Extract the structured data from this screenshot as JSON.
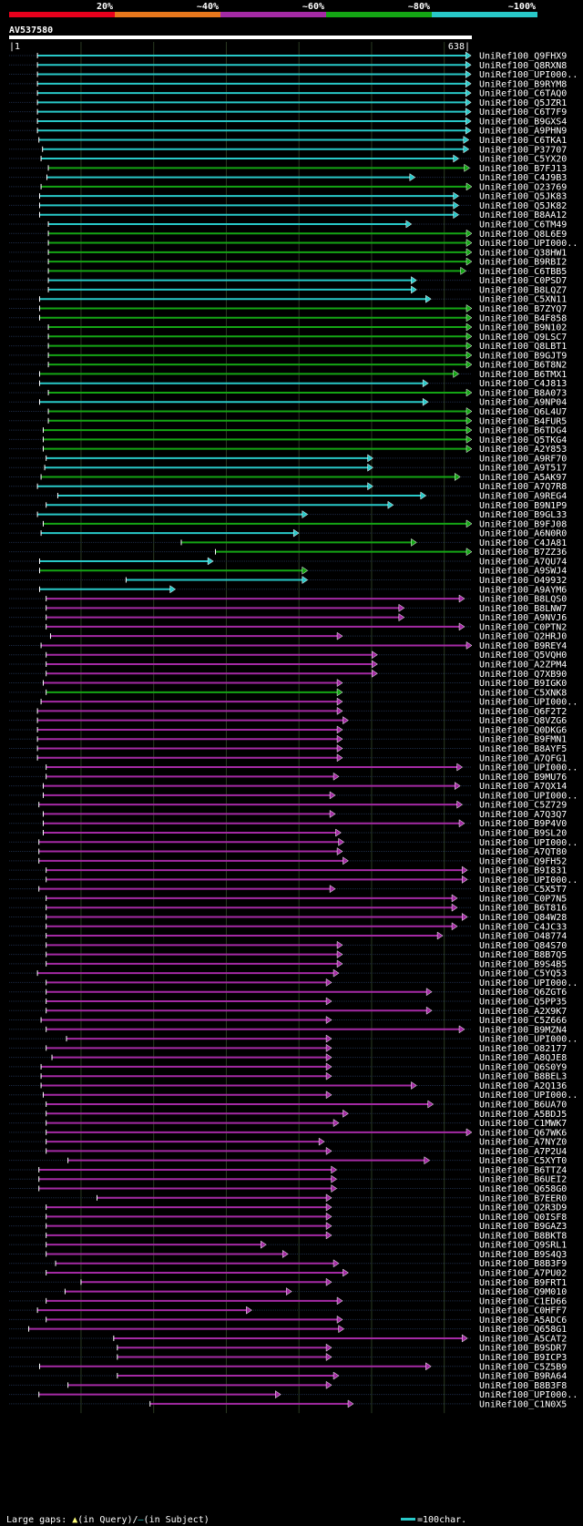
{
  "query_id": "AV537580",
  "scale": {
    "start": "1",
    "end": "638"
  },
  "identity_scale": [
    {
      "label": "20%",
      "color": "#e8001c"
    },
    {
      "label": "~40%",
      "color": "#e8771c"
    },
    {
      "label": "~60%",
      "color": "#a42aa4"
    },
    {
      "label": "~80%",
      "color": "#14a514"
    },
    {
      "label": "~100%",
      "color": "#28c8c8"
    }
  ],
  "colors": {
    "cyan": "#28c8c8",
    "green": "#14a514",
    "magenta": "#a42aa4",
    "gap": "#ffff7a",
    "bar": "#ffffff",
    "background": "#000000"
  },
  "legend": {
    "gaps_prefix": "Large gaps: ",
    "gaps_query": "(in Query)/",
    "gaps_subject": "(in Subject)",
    "scale_text": "=100char."
  },
  "chart_data": {
    "type": "alignment",
    "query_length": 638,
    "x_range": [
      1,
      638
    ],
    "hits": [
      {
        "name": "UniRef100_Q9FHX9",
        "start": 40,
        "end": 637,
        "identity": "~100%"
      },
      {
        "name": "UniRef100_Q8RXN8",
        "start": 40,
        "end": 637,
        "identity": "~100%"
      },
      {
        "name": "UniRef100_UPI000..",
        "start": 40,
        "end": 637,
        "identity": "~100%"
      },
      {
        "name": "UniRef100_B9RYM8",
        "start": 40,
        "end": 637,
        "identity": "~100%"
      },
      {
        "name": "UniRef100_C6TAQ0",
        "start": 40,
        "end": 637,
        "identity": "~100%"
      },
      {
        "name": "UniRef100_Q5JZR1",
        "start": 40,
        "end": 637,
        "identity": "~100%"
      },
      {
        "name": "UniRef100_C6T7F9",
        "start": 40,
        "end": 637,
        "identity": "~100%"
      },
      {
        "name": "UniRef100_B9GXS4",
        "start": 40,
        "end": 637,
        "identity": "~100%"
      },
      {
        "name": "UniRef100_A9PHN9",
        "start": 40,
        "end": 637,
        "identity": "~100%"
      },
      {
        "name": "UniRef100_C6TKA1",
        "start": 42,
        "end": 634,
        "identity": "~100%"
      },
      {
        "name": "UniRef100_P37707",
        "start": 47,
        "end": 634,
        "identity": "~100%"
      },
      {
        "name": "UniRef100_C5YX20",
        "start": 45,
        "end": 620,
        "identity": "~100%"
      },
      {
        "name": "UniRef100_B7FJ13",
        "start": 55,
        "end": 635,
        "identity": "~80%"
      },
      {
        "name": "UniRef100_C4J9B3",
        "start": 53,
        "end": 560,
        "identity": "~100%"
      },
      {
        "name": "UniRef100_O23769",
        "start": 45,
        "end": 638,
        "identity": "~80%"
      },
      {
        "name": "UniRef100_Q5JK83",
        "start": 43,
        "end": 620,
        "identity": "~100%"
      },
      {
        "name": "UniRef100_Q5JK82",
        "start": 43,
        "end": 620,
        "identity": "~100%"
      },
      {
        "name": "UniRef100_B8AA12",
        "start": 43,
        "end": 620,
        "identity": "~100%"
      },
      {
        "name": "UniRef100_C6TM49",
        "start": 55,
        "end": 555,
        "identity": "~100%"
      },
      {
        "name": "UniRef100_Q8L6E9",
        "start": 55,
        "end": 638,
        "identity": "~80%"
      },
      {
        "name": "UniRef100_UPI000..",
        "start": 55,
        "end": 638,
        "identity": "~80%"
      },
      {
        "name": "UniRef100_Q38HW1",
        "start": 55,
        "end": 638,
        "identity": "~80%"
      },
      {
        "name": "UniRef100_B9RBI2",
        "start": 55,
        "end": 638,
        "identity": "~80%"
      },
      {
        "name": "UniRef100_C6TBB5",
        "start": 55,
        "end": 630,
        "identity": "~80%"
      },
      {
        "name": "UniRef100_C0PSD7",
        "start": 55,
        "end": 562,
        "identity": "~100%"
      },
      {
        "name": "UniRef100_B8LQZ7",
        "start": 55,
        "end": 562,
        "identity": "~100%"
      },
      {
        "name": "UniRef100_C5XN11",
        "start": 43,
        "end": 582,
        "identity": "~100%"
      },
      {
        "name": "UniRef100_B7ZYQ7",
        "start": 43,
        "end": 638,
        "identity": "~80%"
      },
      {
        "name": "UniRef100_B4F858",
        "start": 43,
        "end": 638,
        "identity": "~80%"
      },
      {
        "name": "UniRef100_B9N102",
        "start": 55,
        "end": 638,
        "identity": "~80%"
      },
      {
        "name": "UniRef100_Q9LSC7",
        "start": 55,
        "end": 638,
        "identity": "~80%"
      },
      {
        "name": "UniRef100_Q8LBT1",
        "start": 55,
        "end": 638,
        "identity": "~80%"
      },
      {
        "name": "UniRef100_B9GJT9",
        "start": 55,
        "end": 638,
        "identity": "~80%"
      },
      {
        "name": "UniRef100_B6T8N2",
        "start": 55,
        "end": 638,
        "identity": "~80%"
      },
      {
        "name": "UniRef100_B6TMX1",
        "start": 43,
        "end": 620,
        "identity": "~80%"
      },
      {
        "name": "UniRef100_C4J813",
        "start": 43,
        "end": 578,
        "identity": "~100%"
      },
      {
        "name": "UniRef100_B8A073",
        "start": 55,
        "end": 638,
        "identity": "~80%"
      },
      {
        "name": "UniRef100_A9NP04",
        "start": 43,
        "end": 578,
        "identity": "~100%"
      },
      {
        "name": "UniRef100_Q6L4U7",
        "start": 55,
        "end": 638,
        "identity": "~80%"
      },
      {
        "name": "UniRef100_B4FUR5",
        "start": 55,
        "end": 638,
        "identity": "~80%"
      },
      {
        "name": "UniRef100_B6TDG4",
        "start": 48,
        "end": 638,
        "identity": "~80%"
      },
      {
        "name": "UniRef100_Q5TKG4",
        "start": 48,
        "end": 638,
        "identity": "~80%"
      },
      {
        "name": "UniRef100_A2Y853",
        "start": 48,
        "end": 638,
        "identity": "~80%"
      },
      {
        "name": "UniRef100_A9RF70",
        "start": 52,
        "end": 502,
        "identity": "~100%"
      },
      {
        "name": "UniRef100_A9T517",
        "start": 50,
        "end": 502,
        "identity": "~100%"
      },
      {
        "name": "UniRef100_A5AK97",
        "start": 45,
        "end": 622,
        "identity": "~80%"
      },
      {
        "name": "UniRef100_A7Q7R8",
        "start": 40,
        "end": 502,
        "identity": "~100%"
      },
      {
        "name": "UniRef100_A9REG4",
        "start": 68,
        "end": 575,
        "identity": "~100%"
      },
      {
        "name": "UniRef100_B9N1P9",
        "start": 52,
        "end": 530,
        "identity": "~100%"
      },
      {
        "name": "UniRef100_B9GL33",
        "start": 40,
        "end": 412,
        "identity": "~100%"
      },
      {
        "name": "UniRef100_B9FJ08",
        "start": 48,
        "end": 638,
        "identity": "~80%"
      },
      {
        "name": "UniRef100_A6N0R0",
        "start": 45,
        "end": 400,
        "identity": "~100%"
      },
      {
        "name": "UniRef100_C4JA81",
        "start": 238,
        "end": 562,
        "identity": "~80%"
      },
      {
        "name": "UniRef100_B7ZZ36",
        "start": 285,
        "end": 638,
        "identity": "~80%"
      },
      {
        "name": "UniRef100_A7QU74",
        "start": 43,
        "end": 282,
        "identity": "~100%"
      },
      {
        "name": "UniRef100_A9SWJ4",
        "start": 43,
        "end": 412,
        "identity": "~80%"
      },
      {
        "name": "UniRef100_O49932",
        "start": 162,
        "end": 412,
        "identity": "~100%"
      },
      {
        "name": "UniRef100_A9AYM6",
        "start": 43,
        "end": 230,
        "identity": "~100%"
      },
      {
        "name": "UniRef100_B8LQS0",
        "start": 52,
        "end": 628,
        "identity": "~60%"
      },
      {
        "name": "UniRef100_B8LNW7",
        "start": 52,
        "end": 545,
        "identity": "~60%"
      },
      {
        "name": "UniRef100_A9NVJ6",
        "start": 52,
        "end": 545,
        "identity": "~60%"
      },
      {
        "name": "UniRef100_C0PTN2",
        "start": 52,
        "end": 628,
        "identity": "~60%"
      },
      {
        "name": "UniRef100_Q2HRJ0",
        "start": 58,
        "end": 460,
        "identity": "~60%"
      },
      {
        "name": "UniRef100_B9REY4",
        "start": 45,
        "end": 638,
        "identity": "~60%"
      },
      {
        "name": "UniRef100_Q5VQH0",
        "start": 52,
        "end": 508,
        "identity": "~60%"
      },
      {
        "name": "UniRef100_A2ZPM4",
        "start": 52,
        "end": 508,
        "identity": "~60%"
      },
      {
        "name": "UniRef100_Q7XB90",
        "start": 52,
        "end": 508,
        "identity": "~60%"
      },
      {
        "name": "UniRef100_B9IGK0",
        "start": 48,
        "end": 460,
        "identity": "~60%"
      },
      {
        "name": "UniRef100_C5XNK8",
        "start": 52,
        "end": 460,
        "identity": "~80%"
      },
      {
        "name": "UniRef100_UPI000..",
        "start": 45,
        "end": 460,
        "identity": "~60%"
      },
      {
        "name": "UniRef100_Q6F2T2",
        "start": 40,
        "end": 460,
        "identity": "~60%"
      },
      {
        "name": "UniRef100_Q8VZG6",
        "start": 40,
        "end": 468,
        "identity": "~60%"
      },
      {
        "name": "UniRef100_Q0DKG6",
        "start": 40,
        "end": 460,
        "identity": "~60%"
      },
      {
        "name": "UniRef100_B9FMN1",
        "start": 40,
        "end": 460,
        "identity": "~60%"
      },
      {
        "name": "UniRef100_B8AYF5",
        "start": 40,
        "end": 460,
        "identity": "~60%"
      },
      {
        "name": "UniRef100_A7QFG1",
        "start": 40,
        "end": 460,
        "identity": "~60%"
      },
      {
        "name": "UniRef100_UPI000..",
        "start": 52,
        "end": 625,
        "identity": "~60%"
      },
      {
        "name": "UniRef100_B9MU76",
        "start": 52,
        "end": 455,
        "identity": "~60%"
      },
      {
        "name": "UniRef100_A7QX14",
        "start": 48,
        "end": 622,
        "identity": "~60%"
      },
      {
        "name": "UniRef100_UPI000..",
        "start": 48,
        "end": 450,
        "identity": "~60%"
      },
      {
        "name": "UniRef100_C5Z729",
        "start": 42,
        "end": 625,
        "identity": "~60%"
      },
      {
        "name": "UniRef100_A7Q3Q7",
        "start": 48,
        "end": 450,
        "identity": "~60%"
      },
      {
        "name": "UniRef100_B9P4V0",
        "start": 48,
        "end": 628,
        "identity": "~60%"
      },
      {
        "name": "UniRef100_B9SL20",
        "start": 48,
        "end": 458,
        "identity": "~60%"
      },
      {
        "name": "UniRef100_UPI000..",
        "start": 42,
        "end": 462,
        "identity": "~60%"
      },
      {
        "name": "UniRef100_A7QT80",
        "start": 42,
        "end": 460,
        "identity": "~60%"
      },
      {
        "name": "UniRef100_Q9FH52",
        "start": 42,
        "end": 468,
        "identity": "~60%"
      },
      {
        "name": "UniRef100_B9I831",
        "start": 52,
        "end": 632,
        "identity": "~60%"
      },
      {
        "name": "UniRef100_UPI000..",
        "start": 52,
        "end": 632,
        "identity": "~60%"
      },
      {
        "name": "UniRef100_C5X5T7",
        "start": 42,
        "end": 450,
        "identity": "~60%"
      },
      {
        "name": "UniRef100_C0P7N5",
        "start": 52,
        "end": 618,
        "identity": "~60%"
      },
      {
        "name": "UniRef100_B6T816",
        "start": 52,
        "end": 618,
        "identity": "~60%"
      },
      {
        "name": "UniRef100_Q84W28",
        "start": 52,
        "end": 632,
        "identity": "~60%"
      },
      {
        "name": "UniRef100_C4JC33",
        "start": 52,
        "end": 618,
        "identity": "~60%"
      },
      {
        "name": "UniRef100_O48774",
        "start": 52,
        "end": 598,
        "identity": "~60%"
      },
      {
        "name": "UniRef100_Q84S70",
        "start": 52,
        "end": 460,
        "identity": "~60%"
      },
      {
        "name": "UniRef100_B8B7Q5",
        "start": 52,
        "end": 460,
        "identity": "~60%"
      },
      {
        "name": "UniRef100_B9S4B5",
        "start": 52,
        "end": 460,
        "identity": "~60%"
      },
      {
        "name": "UniRef100_C5YQ53",
        "start": 40,
        "end": 455,
        "identity": "~60%"
      },
      {
        "name": "UniRef100_UPI000..",
        "start": 52,
        "end": 445,
        "identity": "~60%"
      },
      {
        "name": "UniRef100_Q6ZGT6",
        "start": 52,
        "end": 583,
        "identity": "~60%"
      },
      {
        "name": "UniRef100_Q5PP35",
        "start": 52,
        "end": 445,
        "identity": "~60%"
      },
      {
        "name": "UniRef100_A2X9K7",
        "start": 52,
        "end": 583,
        "identity": "~60%"
      },
      {
        "name": "UniRef100_C5Z666",
        "start": 45,
        "end": 445,
        "identity": "~60%"
      },
      {
        "name": "UniRef100_B9MZN4",
        "start": 52,
        "end": 628,
        "identity": "~60%"
      },
      {
        "name": "UniRef100_UPI000..",
        "start": 80,
        "end": 445,
        "identity": "~60%"
      },
      {
        "name": "UniRef100_O82177",
        "start": 52,
        "end": 445,
        "identity": "~60%"
      },
      {
        "name": "UniRef100_A8QJE8",
        "start": 60,
        "end": 445,
        "identity": "~60%"
      },
      {
        "name": "UniRef100_Q6S0Y9",
        "start": 45,
        "end": 445,
        "identity": "~60%"
      },
      {
        "name": "UniRef100_B8BEL3",
        "start": 45,
        "end": 445,
        "identity": "~60%"
      },
      {
        "name": "UniRef100_A2Q136",
        "start": 45,
        "end": 562,
        "identity": "~60%"
      },
      {
        "name": "UniRef100_UPI000..",
        "start": 48,
        "end": 445,
        "identity": "~60%"
      },
      {
        "name": "UniRef100_B6UA70",
        "start": 52,
        "end": 585,
        "identity": "~60%"
      },
      {
        "name": "UniRef100_A5BDJ5",
        "start": 52,
        "end": 468,
        "identity": "~60%"
      },
      {
        "name": "UniRef100_C1MWK7",
        "start": 52,
        "end": 455,
        "identity": "~60%"
      },
      {
        "name": "UniRef100_Q67WK6",
        "start": 52,
        "end": 638,
        "identity": "~60%"
      },
      {
        "name": "UniRef100_A7NYZ0",
        "start": 52,
        "end": 435,
        "identity": "~60%"
      },
      {
        "name": "UniRef100_A7P2U4",
        "start": 52,
        "end": 445,
        "identity": "~60%"
      },
      {
        "name": "UniRef100_C5XYT0",
        "start": 82,
        "end": 580,
        "identity": "~60%"
      },
      {
        "name": "UniRef100_B6TTZ4",
        "start": 42,
        "end": 452,
        "identity": "~60%"
      },
      {
        "name": "UniRef100_B6UEI2",
        "start": 42,
        "end": 452,
        "identity": "~60%"
      },
      {
        "name": "UniRef100_Q658G0",
        "start": 42,
        "end": 452,
        "identity": "~60%"
      },
      {
        "name": "UniRef100_B7EER0",
        "start": 122,
        "end": 445,
        "identity": "~60%"
      },
      {
        "name": "UniRef100_Q2R3D9",
        "start": 52,
        "end": 445,
        "identity": "~60%"
      },
      {
        "name": "UniRef100_Q0ISF8",
        "start": 52,
        "end": 445,
        "identity": "~60%"
      },
      {
        "name": "UniRef100_B9GAZ3",
        "start": 52,
        "end": 445,
        "identity": "~60%"
      },
      {
        "name": "UniRef100_B8BKT8",
        "start": 52,
        "end": 445,
        "identity": "~60%"
      },
      {
        "name": "UniRef100_Q9SRL1",
        "start": 52,
        "end": 355,
        "identity": "~60%"
      },
      {
        "name": "UniRef100_B9S4Q3",
        "start": 52,
        "end": 385,
        "identity": "~60%"
      },
      {
        "name": "UniRef100_B8B3F9",
        "start": 65,
        "end": 455,
        "identity": "~60%"
      },
      {
        "name": "UniRef100_A7PU02",
        "start": 52,
        "end": 468,
        "identity": "~60%"
      },
      {
        "name": "UniRef100_B9FRT1",
        "start": 100,
        "end": 445,
        "identity": "~60%"
      },
      {
        "name": "UniRef100_Q9M010",
        "start": 78,
        "end": 390,
        "identity": "~60%"
      },
      {
        "name": "UniRef100_C1ED66",
        "start": 52,
        "end": 460,
        "identity": "~60%"
      },
      {
        "name": "UniRef100_C0HFF7",
        "start": 40,
        "end": 335,
        "identity": "~60%"
      },
      {
        "name": "UniRef100_A5ADC6",
        "start": 52,
        "end": 460,
        "identity": "~60%"
      },
      {
        "name": "UniRef100_Q658G1",
        "start": 28,
        "end": 462,
        "identity": "~60%"
      },
      {
        "name": "UniRef100_A5CAT2",
        "start": 145,
        "end": 632,
        "identity": "~60%"
      },
      {
        "name": "UniRef100_B9SDR7",
        "start": 150,
        "end": 445,
        "identity": "~60%"
      },
      {
        "name": "UniRef100_B9ICP3",
        "start": 150,
        "end": 445,
        "identity": "~60%"
      },
      {
        "name": "UniRef100_C5Z5B9",
        "start": 43,
        "end": 582,
        "identity": "~60%"
      },
      {
        "name": "UniRef100_B9RA64",
        "start": 150,
        "end": 455,
        "identity": "~60%"
      },
      {
        "name": "UniRef100_B8B3F8",
        "start": 82,
        "end": 445,
        "identity": "~60%"
      },
      {
        "name": "UniRef100_UPI000..",
        "start": 42,
        "end": 375,
        "identity": "~60%"
      },
      {
        "name": "UniRef100_C1N0X5",
        "start": 195,
        "end": 475,
        "identity": "~60%"
      }
    ]
  }
}
